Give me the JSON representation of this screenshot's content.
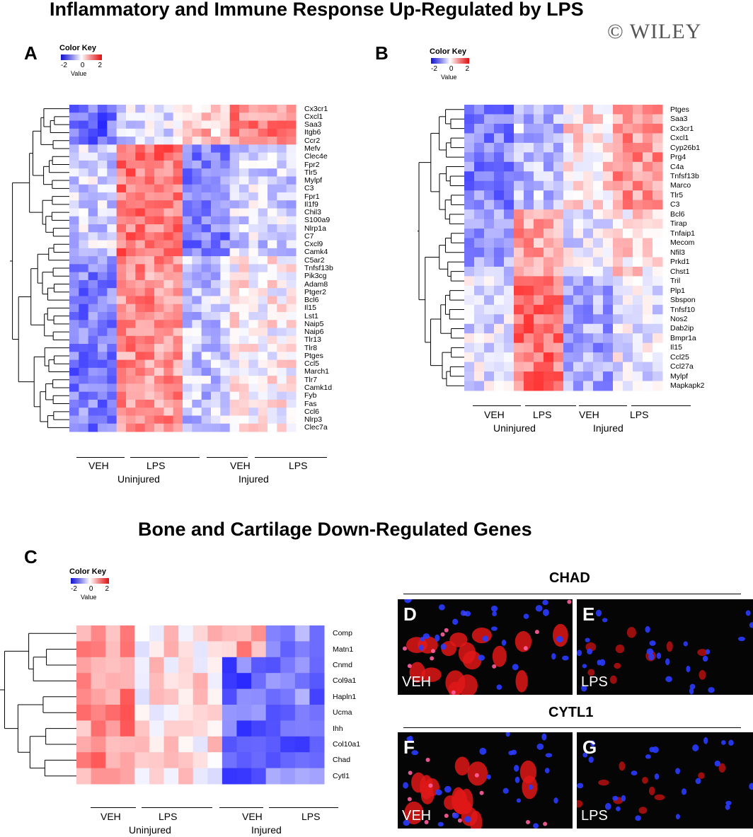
{
  "title_top": "Inflammatory and Immune Response Up-Regulated by LPS",
  "title_mid": "Bone and Cartilage Down-Regulated Genes",
  "watermark": "© WILEY",
  "color_key": {
    "title": "Color Key",
    "ticks": [
      "-2",
      "0",
      "2"
    ],
    "value_label": "Value",
    "low_color": "#1010d0",
    "mid_color": "#ffffff",
    "high_color": "#e01010"
  },
  "panels": {
    "A": {
      "letter": "A",
      "genes": [
        "Cx3cr1",
        "Cxcl1",
        "Saa3",
        "Itgb6",
        "Ccr2",
        "Mefv",
        "Clec4e",
        "Fpr2",
        "Tlr5",
        "Mylpf",
        "C3",
        "Fpr1",
        "Il1f9",
        "Chil3",
        "S100a9",
        "Nlrp1a",
        "C7",
        "Cxcl9",
        "Camk4",
        "C5ar2",
        "Tnfsf13b",
        "Pik3cg",
        "Adam8",
        "Ptger2",
        "Bcl6",
        "Il15",
        "Lst1",
        "Naip5",
        "Naip6",
        "Tlr13",
        "Tlr8",
        "Ptges",
        "Ccl5",
        "March1",
        "Tlr7",
        "Camk1d",
        "Fyb",
        "Fas",
        "Ccl6",
        "Nlrp3",
        "Clec7a"
      ],
      "group_labels": [
        "VEH",
        "LPS",
        "VEH",
        "LPS"
      ],
      "condition_labels": [
        "Uninjured",
        "Injured"
      ]
    },
    "B": {
      "letter": "B",
      "genes": [
        "Ptges",
        "Saa3",
        "Cx3cr1",
        "Cxcl1",
        "Cyp26b1",
        "Prg4",
        "C4a",
        "Tnfsf13b",
        "Marco",
        "Tlr5",
        "C3",
        "Bcl6",
        "Tirap",
        "Tnfaip1",
        "Mecom",
        "Nfil3",
        "Prkd1",
        "Chst1",
        "Tril",
        "Plp1",
        "Sbspon",
        "Tnfsf10",
        "Nos2",
        "Dab2ip",
        "Bmpr1a",
        "Il15",
        "Ccl25",
        "Ccl27a",
        "Mylpf",
        "Mapkapk2"
      ],
      "group_labels": [
        "VEH",
        "LPS",
        "VEH",
        "LPS"
      ],
      "condition_labels": [
        "Uninjured",
        "Injured"
      ]
    },
    "C": {
      "letter": "C",
      "genes": [
        "Comp",
        "Matn1",
        "Cnmd",
        "Col9a1",
        "Hapln1",
        "Ucma",
        "Ihh",
        "Col10a1",
        "Chad",
        "Cytl1"
      ],
      "group_labels": [
        "VEH",
        "LPS",
        "VEH",
        "LPS"
      ],
      "condition_labels": [
        "Uninjured",
        "Injured"
      ]
    }
  },
  "micro": {
    "chad_title": "CHAD",
    "cytl1_title": "CYTL1",
    "D": {
      "letter": "D",
      "cond": "VEH"
    },
    "E": {
      "letter": "E",
      "cond": "LPS"
    },
    "F": {
      "letter": "F",
      "cond": "VEH"
    },
    "G": {
      "letter": "G",
      "cond": "LPS"
    }
  }
}
